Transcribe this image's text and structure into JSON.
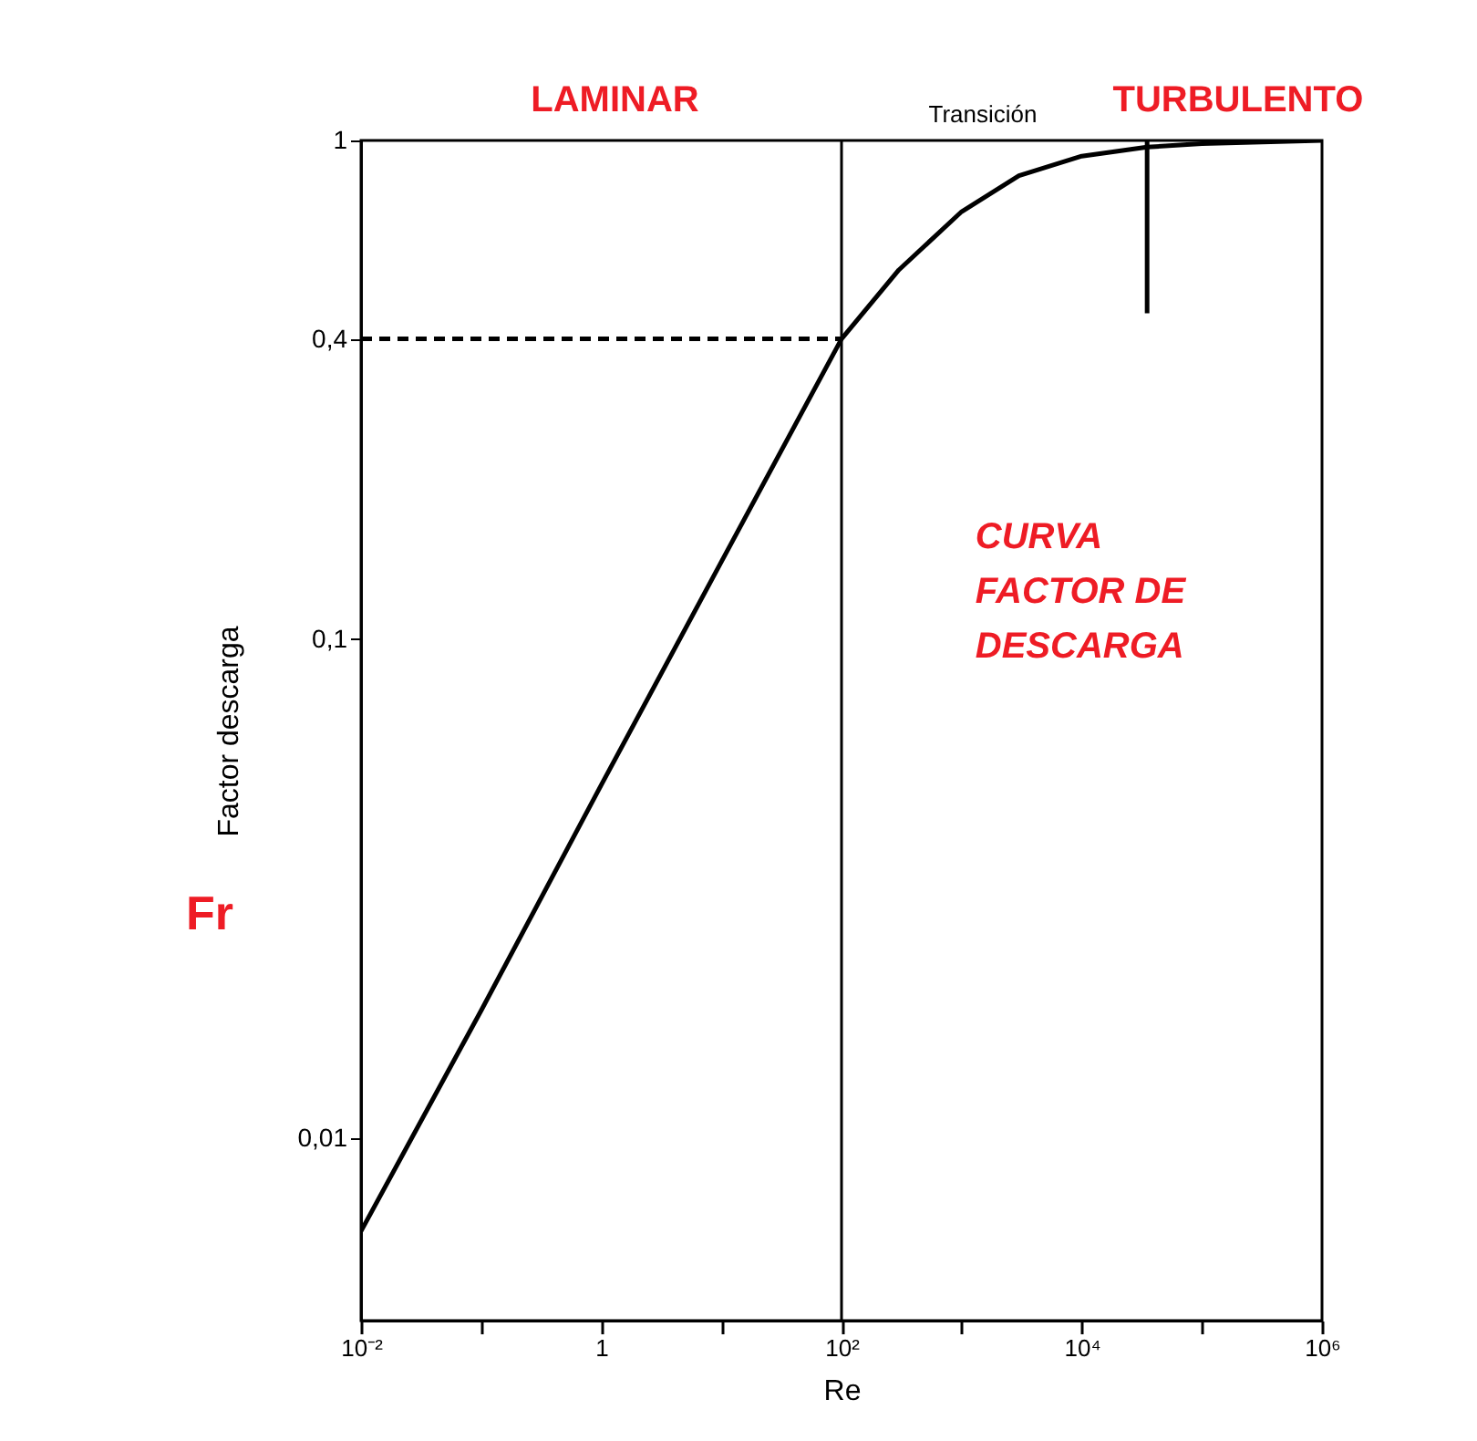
{
  "chart_data": {
    "type": "line",
    "xlabel": "Re",
    "ylabel": "Factor descarga",
    "log": "xy",
    "grid": false,
    "marker": "none",
    "xlim": [
      0.01,
      1000000
    ],
    "ylim": [
      0.0043,
      1
    ],
    "xticks": [
      {
        "value": 0.01,
        "label": "10⁻²"
      },
      {
        "value": 0.1,
        "label": null
      },
      1,
      {
        "value": 10,
        "label": null
      },
      {
        "value": 100,
        "label": "10²"
      },
      {
        "value": 1000,
        "label": null
      },
      {
        "value": 10000,
        "label": "10⁴"
      },
      {
        "value": 100000,
        "label": null
      },
      {
        "value": 1000000,
        "label": "10⁶"
      }
    ],
    "yticks": [
      {
        "value": 0.01,
        "label": "0,01"
      },
      {
        "value": 0.1,
        "label": "0,1"
      },
      {
        "value": 0.4,
        "label": "0,4"
      },
      1
    ],
    "annotations": [
      "LAMINAR",
      "Transición",
      "TURBULENTO",
      "CURVA\nFACTOR DE\nDESCARGA",
      "Fr"
    ],
    "ref_lines": [
      {
        "axis": "x",
        "value": 100,
        "color": "#000000",
        "line_style": "solid"
      }
    ],
    "series": [
      {
        "color": "#000000",
        "line_style": "solid",
        "x": [
          0.01,
          0.1,
          1,
          10,
          100,
          300,
          1000,
          3000,
          10000,
          35000,
          100000,
          1000000
        ],
        "values": [
          0.0065,
          0.018,
          0.051,
          0.143,
          0.4,
          0.55,
          0.72,
          0.85,
          0.93,
          0.97,
          0.985,
          1
        ]
      },
      {
        "color": "#000000",
        "line_style": "dashed",
        "x": [
          0.01,
          100
        ],
        "values": [
          0.4,
          0.4
        ]
      },
      {
        "color": "#000000",
        "line_style": "solid",
        "x": [
          35000,
          35000
        ],
        "values": [
          0.45,
          1
        ]
      }
    ]
  }
}
